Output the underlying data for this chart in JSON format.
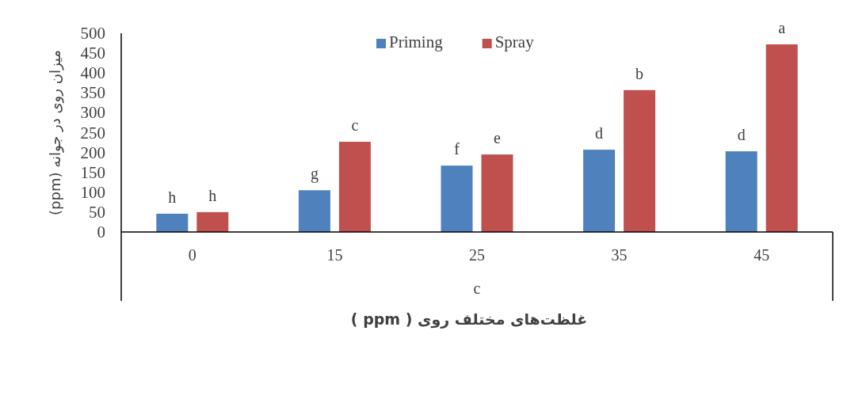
{
  "chart_data": {
    "type": "bar",
    "xlabel": "غلظت‌های مختلف روی ( ppm )",
    "ylabel": "میزان  روی در جوانه (ppm)",
    "categories": [
      "0",
      "15",
      "25",
      "35",
      "45"
    ],
    "series": [
      {
        "name": "Priming",
        "color": "#4f81bd",
        "values": [
          46,
          105,
          167,
          207,
          203
        ],
        "value_labels": [
          "h",
          "g",
          "f",
          "d",
          "d"
        ]
      },
      {
        "name": "Spray",
        "color": "#c0504d",
        "values": [
          50,
          227,
          195,
          357,
          472
        ],
        "value_labels": [
          "h",
          "c",
          "e",
          "b",
          "a"
        ]
      }
    ],
    "ylim": [
      0,
      500
    ],
    "yticks": [
      0,
      50,
      100,
      150,
      200,
      250,
      300,
      350,
      400,
      450,
      500
    ],
    "grid": false,
    "legend": "top",
    "annotations": [
      "c"
    ]
  }
}
